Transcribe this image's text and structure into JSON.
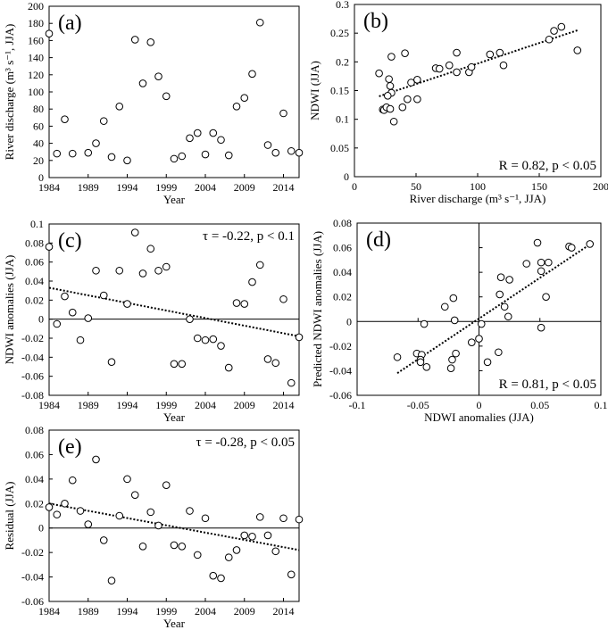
{
  "chart_data": [
    {
      "id": "a",
      "type": "scatter",
      "panel_label": "(a)",
      "xlabel": "Year",
      "ylabel": "River discharge (m³ s⁻¹, JJA)",
      "xlim": [
        1984,
        2016
      ],
      "ylim": [
        0,
        200
      ],
      "xticks": [
        1984,
        1989,
        1994,
        1999,
        2004,
        2009,
        2014
      ],
      "yticks": [
        0,
        20,
        40,
        60,
        80,
        100,
        120,
        140,
        160,
        180,
        200
      ],
      "zero_lines": {
        "h": false,
        "v": false
      },
      "points": [
        [
          1984,
          168
        ],
        [
          1985,
          28
        ],
        [
          1986,
          68
        ],
        [
          1987,
          28
        ],
        [
          1989,
          29
        ],
        [
          1990,
          40
        ],
        [
          1991,
          66
        ],
        [
          1992,
          24
        ],
        [
          1993,
          83
        ],
        [
          1994,
          20
        ],
        [
          1995,
          161
        ],
        [
          1996,
          110
        ],
        [
          1997,
          158
        ],
        [
          1998,
          118
        ],
        [
          1999,
          95
        ],
        [
          2000,
          22
        ],
        [
          2001,
          25
        ],
        [
          2002,
          46
        ],
        [
          2003,
          52
        ],
        [
          2004,
          27
        ],
        [
          2005,
          52
        ],
        [
          2006,
          44
        ],
        [
          2007,
          26
        ],
        [
          2008,
          83
        ],
        [
          2009,
          93
        ],
        [
          2010,
          121
        ],
        [
          2011,
          181
        ],
        [
          2012,
          38
        ],
        [
          2013,
          29
        ],
        [
          2014,
          75
        ],
        [
          2015,
          31
        ],
        [
          2016,
          29
        ]
      ],
      "trend": null,
      "annotation": null,
      "annotation_position": null
    },
    {
      "id": "b",
      "type": "scatter",
      "panel_label": "(b)",
      "xlabel": "River discharge (m³ s⁻¹, JJA)",
      "ylabel": "NDWI (JJA)",
      "xlim": [
        0,
        200
      ],
      "ylim": [
        0,
        0.3
      ],
      "xticks": [
        0,
        50,
        100,
        150,
        200
      ],
      "yticks": [
        0,
        0.05,
        0.1,
        0.15,
        0.2,
        0.25,
        0.3
      ],
      "zero_lines": {
        "h": false,
        "v": false
      },
      "points": [
        [
          20,
          0.18
        ],
        [
          30,
          0.209
        ],
        [
          41,
          0.215
        ],
        [
          28,
          0.17
        ],
        [
          29,
          0.158
        ],
        [
          30,
          0.146
        ],
        [
          27,
          0.141
        ],
        [
          23,
          0.117
        ],
        [
          24,
          0.116
        ],
        [
          26,
          0.121
        ],
        [
          29,
          0.118
        ],
        [
          32,
          0.096
        ],
        [
          39,
          0.121
        ],
        [
          43,
          0.135
        ],
        [
          51,
          0.135
        ],
        [
          46,
          0.164
        ],
        [
          51,
          0.169
        ],
        [
          66,
          0.189
        ],
        [
          69,
          0.188
        ],
        [
          77,
          0.194
        ],
        [
          83,
          0.216
        ],
        [
          83,
          0.182
        ],
        [
          93,
          0.182
        ],
        [
          95,
          0.191
        ],
        [
          110,
          0.213
        ],
        [
          118,
          0.216
        ],
        [
          121,
          0.194
        ],
        [
          158,
          0.239
        ],
        [
          162,
          0.254
        ],
        [
          168,
          0.261
        ],
        [
          181,
          0.22
        ]
      ],
      "trend": [
        [
          20,
          0.14
        ],
        [
          181,
          0.255
        ]
      ],
      "annotation": "R = 0.82, p < 0.05",
      "annotation_position": "bottom-right"
    },
    {
      "id": "c",
      "type": "scatter",
      "panel_label": "(c)",
      "xlabel": "",
      "ylabel": "NDWI  anomalies (JJA)",
      "xlim": [
        1984,
        2016
      ],
      "ylim": [
        -0.08,
        0.1
      ],
      "xticks": [
        1984,
        1989,
        1994,
        1999,
        2004,
        2009,
        2014
      ],
      "yticks": [
        -0.08,
        -0.06,
        -0.04,
        -0.02,
        0,
        0.02,
        0.04,
        0.06,
        0.08,
        0.1
      ],
      "zero_lines": {
        "h": true,
        "v": false
      },
      "points": [
        [
          1984,
          0.076
        ],
        [
          1985,
          -0.005
        ],
        [
          1986,
          0.024
        ],
        [
          1987,
          0.007
        ],
        [
          1988,
          -0.022
        ],
        [
          1989,
          0.001
        ],
        [
          1990,
          0.051
        ],
        [
          1991,
          0.025
        ],
        [
          1992,
          -0.045
        ],
        [
          1993,
          0.051
        ],
        [
          1994,
          0.016
        ],
        [
          1995,
          0.091
        ],
        [
          1996,
          0.048
        ],
        [
          1997,
          0.074
        ],
        [
          1998,
          0.051
        ],
        [
          1999,
          0.055
        ],
        [
          2000,
          -0.047
        ],
        [
          2001,
          -0.047
        ],
        [
          2002,
          0
        ],
        [
          2003,
          -0.02
        ],
        [
          2004,
          -0.022
        ],
        [
          2005,
          -0.021
        ],
        [
          2006,
          -0.028
        ],
        [
          2007,
          -0.051
        ],
        [
          2008,
          0.017
        ],
        [
          2009,
          0.016
        ],
        [
          2010,
          0.039
        ],
        [
          2011,
          0.057
        ],
        [
          2012,
          -0.042
        ],
        [
          2013,
          -0.046
        ],
        [
          2014,
          0.021
        ],
        [
          2015,
          -0.067
        ],
        [
          2016,
          -0.019
        ]
      ],
      "trend": [
        [
          1984,
          0.033
        ],
        [
          2016,
          -0.018
        ]
      ],
      "annotation": "τ = -0.22, p < 0.1",
      "annotation_position": "top-right"
    },
    {
      "id": "d",
      "type": "scatter",
      "panel_label": "(d)",
      "xlabel": "NDWI anomalies (JJA)",
      "ylabel": "Predicted NDWI anomalies (JJA)",
      "xlim": [
        -0.1,
        0.1
      ],
      "ylim": [
        -0.06,
        0.08
      ],
      "xticks": [
        -0.1,
        -0.05,
        0,
        0.05,
        0.1
      ],
      "yticks": [
        -0.06,
        -0.04,
        -0.02,
        0,
        0.02,
        0.04,
        0.06,
        0.08
      ],
      "zero_lines": {
        "h": true,
        "v": true
      },
      "points": [
        [
          -0.067,
          -0.029
        ],
        [
          -0.051,
          -0.026
        ],
        [
          -0.047,
          -0.027
        ],
        [
          -0.048,
          -0.031
        ],
        [
          -0.048,
          -0.033
        ],
        [
          -0.043,
          -0.037
        ],
        [
          -0.045,
          -0.002
        ],
        [
          -0.028,
          0.012
        ],
        [
          -0.021,
          0.019
        ],
        [
          -0.02,
          0.001
        ],
        [
          -0.022,
          -0.031
        ],
        [
          -0.023,
          -0.038
        ],
        [
          -0.019,
          -0.026
        ],
        [
          -0.006,
          -0.017
        ],
        [
          0,
          -0.014
        ],
        [
          0.002,
          -0.002
        ],
        [
          0.007,
          -0.033
        ],
        [
          0.016,
          -0.025
        ],
        [
          0.017,
          0.022
        ],
        [
          0.018,
          0.036
        ],
        [
          0.021,
          0.012
        ],
        [
          0.024,
          0.004
        ],
        [
          0.025,
          0.034
        ],
        [
          0.039,
          0.047
        ],
        [
          0.048,
          0.064
        ],
        [
          0.051,
          0.048
        ],
        [
          0.051,
          0.041
        ],
        [
          0.051,
          -0.005
        ],
        [
          0.055,
          0.02
        ],
        [
          0.057,
          0.048
        ],
        [
          0.074,
          0.061
        ],
        [
          0.076,
          0.06
        ],
        [
          0.091,
          0.063
        ]
      ],
      "trend": [
        [
          -0.067,
          -0.042
        ],
        [
          0.09,
          0.062
        ]
      ],
      "annotation": "R = 0.81, p < 0.05",
      "annotation_position": "bottom-right"
    },
    {
      "id": "e",
      "type": "scatter",
      "panel_label": "(e)",
      "xlabel": "Year",
      "ylabel": "Residual (JJA)",
      "xlim": [
        1984,
        2016
      ],
      "ylim": [
        -0.06,
        0.08
      ],
      "xticks": [
        1984,
        1989,
        1994,
        1999,
        2004,
        2009,
        2014
      ],
      "yticks": [
        -0.06,
        -0.04,
        -0.02,
        0,
        0.02,
        0.04,
        0.06,
        0.08
      ],
      "zero_lines": {
        "h": true,
        "v": false
      },
      "points": [
        [
          1984,
          0.017
        ],
        [
          1985,
          0.011
        ],
        [
          1986,
          0.02
        ],
        [
          1987,
          0.039
        ],
        [
          1988,
          0.014
        ],
        [
          1989,
          0.003
        ],
        [
          1990,
          0.056
        ],
        [
          1991,
          -0.01
        ],
        [
          1992,
          -0.043
        ],
        [
          1993,
          0.01
        ],
        [
          1994,
          0.04
        ],
        [
          1995,
          0.027
        ],
        [
          1996,
          -0.015
        ],
        [
          1997,
          0.013
        ],
        [
          1998,
          0.002
        ],
        [
          1999,
          0.035
        ],
        [
          2000,
          -0.014
        ],
        [
          2001,
          -0.015
        ],
        [
          2002,
          0.014
        ],
        [
          2003,
          -0.022
        ],
        [
          2004,
          0.008
        ],
        [
          2005,
          -0.039
        ],
        [
          2006,
          -0.041
        ],
        [
          2007,
          -0.024
        ],
        [
          2008,
          -0.018
        ],
        [
          2009,
          -0.006
        ],
        [
          2010,
          -0.007
        ],
        [
          2011,
          0.009
        ],
        [
          2012,
          -0.006
        ],
        [
          2013,
          -0.019
        ],
        [
          2014,
          0.008
        ],
        [
          2015,
          -0.038
        ],
        [
          2016,
          0.007
        ]
      ],
      "trend": [
        [
          1984,
          0.02
        ],
        [
          2016,
          -0.018
        ]
      ],
      "annotation": "τ = -0.28, p < 0.05",
      "annotation_position": "top-right"
    }
  ],
  "extra_labels": {
    "c_xlabel_above_d": "Year"
  }
}
